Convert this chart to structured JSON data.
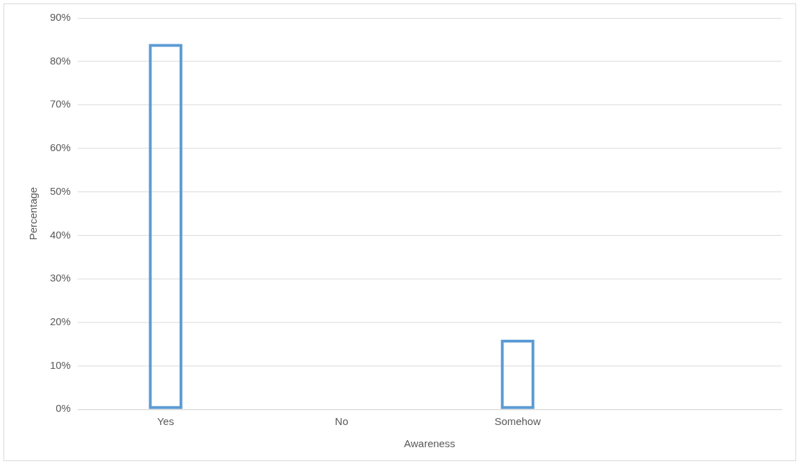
{
  "chart_data": {
    "type": "bar",
    "xlabel": "Awareness",
    "ylabel": "Percentage",
    "categories": [
      "Yes",
      "No",
      "Somehow",
      null
    ],
    "values": [
      84,
      0,
      16,
      null
    ],
    "color": "#5b9bd5",
    "ylim": [
      0,
      90
    ],
    "yticks": [
      {
        "value": 0,
        "label": "0%"
      },
      {
        "value": 10,
        "label": "10%"
      },
      {
        "value": 20,
        "label": "20%"
      },
      {
        "value": 30,
        "label": "30%"
      },
      {
        "value": 40,
        "label": "40%"
      },
      {
        "value": 50,
        "label": "50%"
      },
      {
        "value": 60,
        "label": "60%"
      },
      {
        "value": 70,
        "label": "70%"
      },
      {
        "value": 80,
        "label": "80%"
      },
      {
        "value": 90,
        "label": "90%"
      }
    ],
    "grid": "y",
    "legend": false
  }
}
